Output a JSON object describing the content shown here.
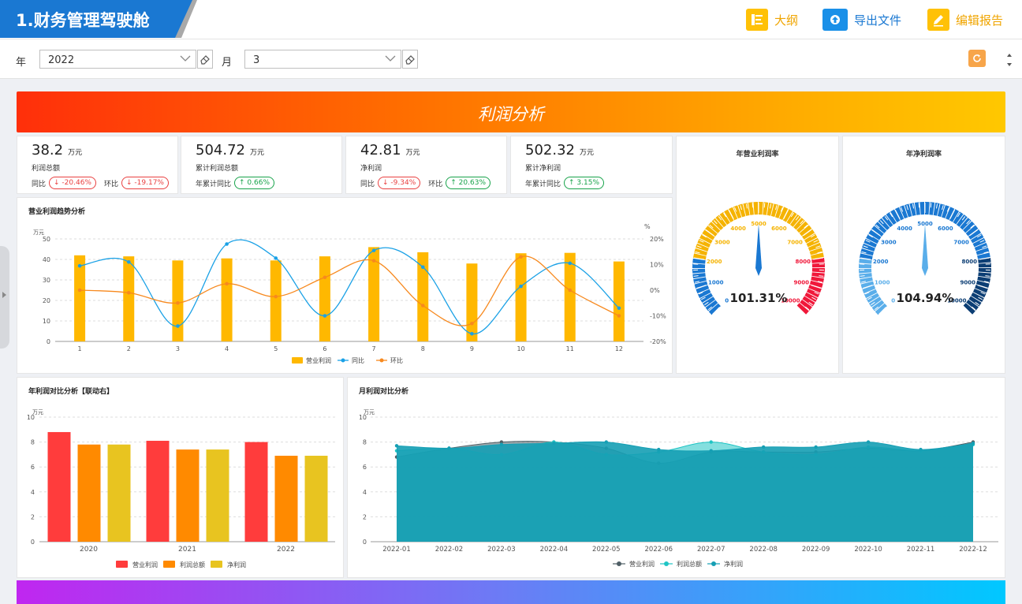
{
  "app": {
    "title": "1.财务管理驾驶舱",
    "toolbar": {
      "outline": "大纲",
      "export": "导出文件",
      "edit": "编辑报告"
    }
  },
  "filters": {
    "year_label": "年",
    "year_value": "2022",
    "month_label": "月",
    "month_value": "3"
  },
  "banner": {
    "title": "利润分析"
  },
  "kpis": [
    {
      "value": "38.2",
      "unit": "万元",
      "name": "利润总额",
      "l1": "同比",
      "v1": "↓ -20.46%",
      "d1": "down",
      "l2": "环比",
      "v2": "↓ -19.17%",
      "d2": "down"
    },
    {
      "value": "504.72",
      "unit": "万元",
      "name": "累计利润总额",
      "l1": "年累计同比",
      "v1": "↑ 0.66%",
      "d1": "up",
      "l2": "",
      "v2": "",
      "d2": ""
    },
    {
      "value": "42.81",
      "unit": "万元",
      "name": "净利润",
      "l1": "同比",
      "v1": "↓ -9.34%",
      "d1": "down",
      "l2": "环比",
      "v2": "↑ 20.63%",
      "d2": "up"
    },
    {
      "value": "502.32",
      "unit": "万元",
      "name": "累计净利润",
      "l1": "年累计同比",
      "v1": "↑ 3.15%",
      "d1": "up",
      "l2": "",
      "v2": "",
      "d2": ""
    }
  ],
  "gauges": [
    {
      "title": "年营业利润率",
      "value_text": "101.31%",
      "value": 101.31,
      "ticks": [
        "0",
        "1000",
        "2000",
        "3000",
        "4000",
        "5000",
        "6000",
        "7000",
        "8000",
        "9000",
        "10000"
      ],
      "colors": [
        "#1a78d2",
        "#f5b301",
        "#f0183a"
      ]
    },
    {
      "title": "年净利润率",
      "value_text": "104.94%",
      "value": 104.94,
      "ticks": [
        "0",
        "1000",
        "2000",
        "3000",
        "4000",
        "5000",
        "6000",
        "7000",
        "8000",
        "9000",
        "10000"
      ],
      "colors": [
        "#5aaeea",
        "#1a78d2",
        "#0c3e74"
      ]
    }
  ],
  "chart_data": [
    {
      "type": "bar",
      "title": "营业利润趋势分析",
      "y_unit": "万元",
      "y2_unit": "%",
      "categories": [
        "1",
        "2",
        "3",
        "4",
        "5",
        "6",
        "7",
        "8",
        "9",
        "10",
        "11",
        "12"
      ],
      "ylim": [
        0,
        50
      ],
      "y2lim": [
        -20,
        20
      ],
      "yticks": [
        "0",
        "10",
        "20",
        "30",
        "40",
        "50"
      ],
      "y2ticks": [
        "-20%",
        "-10%",
        "0%",
        "10%",
        "20%"
      ],
      "series": [
        {
          "name": "营业利润",
          "kind": "bar",
          "color": "#ffb800",
          "values": [
            42,
            41.5,
            39.5,
            40.5,
            39.5,
            41.5,
            46,
            43.5,
            38,
            43,
            43.2,
            39
          ]
        },
        {
          "name": "同比",
          "kind": "line",
          "axis": "right",
          "color": "#1aa1e6",
          "values": [
            9.5,
            11,
            -14,
            18,
            12.5,
            -10,
            15.5,
            9,
            -17,
            1.5,
            10.5,
            -7
          ]
        },
        {
          "name": "环比",
          "kind": "line",
          "axis": "right",
          "color": "#f7891e",
          "values": [
            0,
            -1,
            -5,
            2.5,
            -2.5,
            5,
            11.5,
            -6,
            -13,
            13,
            0,
            -10
          ]
        }
      ]
    },
    {
      "type": "bar",
      "title": "年利润对比分析【联动右】",
      "y_unit": "万元",
      "categories": [
        "2020",
        "2021",
        "2022"
      ],
      "ylim": [
        0,
        10
      ],
      "yticks": [
        "0",
        "2",
        "4",
        "6",
        "8",
        "10"
      ],
      "series": [
        {
          "name": "营业利润",
          "color": "#ff3c3c",
          "values": [
            8.8,
            8.1,
            8
          ]
        },
        {
          "name": "利润总额",
          "color": "#ff8a00",
          "values": [
            7.8,
            7.4,
            6.9
          ]
        },
        {
          "name": "净利润",
          "color": "#e8c420",
          "values": [
            7.8,
            7.4,
            6.9
          ]
        }
      ]
    },
    {
      "type": "area",
      "title": "月利润对比分析",
      "y_unit": "万元",
      "categories": [
        "2022-01",
        "2022-02",
        "2022-03",
        "2022-04",
        "2022-05",
        "2022-06",
        "2022-07",
        "2022-08",
        "2022-09",
        "2022-10",
        "2022-11",
        "2022-12"
      ],
      "ylim": [
        0,
        10
      ],
      "yticks": [
        "0",
        "2",
        "4",
        "6",
        "8",
        "10"
      ],
      "series": [
        {
          "name": "营业利润",
          "color": "#4f5f66",
          "values": [
            6.8,
            7.5,
            8,
            8,
            7.5,
            6.3,
            7.2,
            7.2,
            7.2,
            7.5,
            7.3,
            8
          ]
        },
        {
          "name": "利润总额",
          "color": "#1fc5c5",
          "values": [
            7.3,
            7.5,
            7,
            8,
            7,
            7.2,
            8,
            7.2,
            7,
            7.6,
            7.3,
            7.8
          ]
        },
        {
          "name": "净利润",
          "color": "#159fb4",
          "values": [
            7.7,
            7.5,
            7.8,
            7.9,
            8,
            7.4,
            7.3,
            7.6,
            7.6,
            8,
            7.4,
            7.9
          ]
        }
      ]
    }
  ]
}
